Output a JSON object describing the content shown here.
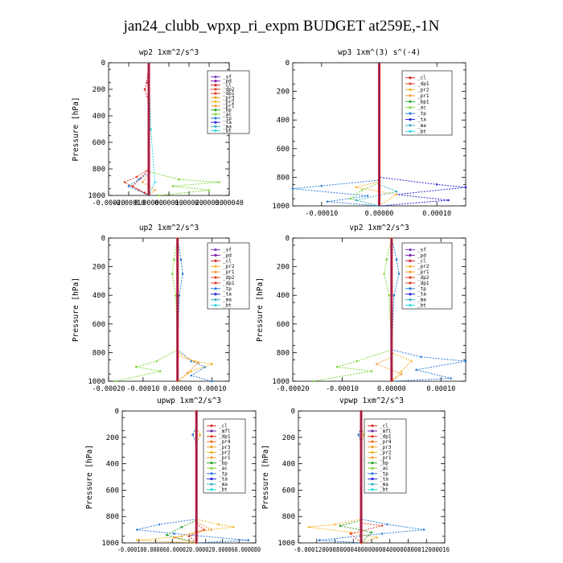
{
  "title": "jan24_clubb_wpxp_ri_expm  BUDGET at259E,-1N",
  "colors": {
    "sf": "#7e3fbf",
    "pd": "#7a1fa8",
    "cl": "#d02a2a",
    "dp2": "#e0442b",
    "dp1": "#e0442b",
    "pr2": "#f5b324",
    "pr1": "#f39c3a",
    "pr3": "#e8a321",
    "pr4": "#e8722a",
    "bp1": "#2fa32f",
    "bp": "#2fa32f",
    "ac": "#7fd83f",
    "tp": "#2f7fd8",
    "ta": "#2a2ad8",
    "ma": "#3fb4c8",
    "bt": "#2ad8e0",
    "mfl": "#6a1fa0",
    "center": "#c81e1e"
  },
  "chart_data": [
    {
      "type": "line",
      "title": "wp2  1xm^2/s^3",
      "ylabel": "Pressure  [hPa]",
      "ylim": [
        1000,
        0
      ],
      "xlim": [
        -0.0002,
        0.0004
      ],
      "xticks": [
        "-0.00020",
        "-0.00010",
        "0.00000",
        "0.00010",
        "0.00020",
        "0.00030",
        "0.00040"
      ],
      "yticks": [
        "0",
        "200",
        "400",
        "600",
        "800",
        "1000"
      ],
      "legend": [
        "_sf",
        "_pd",
        "_cl",
        "_dp2",
        "_dp1",
        "_pr3",
        "_pr2",
        "_pr1",
        "_bp",
        "_ac",
        "_tp",
        "_ta",
        "_ma",
        "_bt"
      ],
      "series": [
        {
          "name": "_cl",
          "color": "cl",
          "points": [
            [
              0,
              0
            ],
            [
              -1e-05,
              150
            ],
            [
              -2e-05,
              200
            ],
            [
              0,
              300
            ],
            [
              0,
              800
            ],
            [
              -4e-05,
              870
            ],
            [
              -8e-05,
              930
            ],
            [
              -2e-05,
              980
            ],
            [
              0,
              1000
            ]
          ]
        },
        {
          "name": "_dp1",
          "color": "dp1",
          "points": [
            [
              0,
              0
            ],
            [
              0,
              800
            ],
            [
              -6e-05,
              860
            ],
            [
              -0.00012,
              900
            ],
            [
              -5e-05,
              960
            ],
            [
              0,
              1000
            ]
          ]
        },
        {
          "name": "_ac",
          "color": "ac",
          "points": [
            [
              0,
              0
            ],
            [
              0,
              820
            ],
            [
              0.00015,
              880
            ],
            [
              0.00035,
              900
            ],
            [
              0.00012,
              930
            ],
            [
              0.0003,
              960
            ],
            [
              5e-05,
              1000
            ]
          ]
        },
        {
          "name": "_tp",
          "color": "tp",
          "points": [
            [
              0,
              0
            ],
            [
              0,
              830
            ],
            [
              -5e-05,
              880
            ],
            [
              -0.0001,
              930
            ],
            [
              0,
              1000
            ]
          ]
        },
        {
          "name": "_pr1",
          "color": "pr1",
          "points": [
            [
              0,
              0
            ],
            [
              0,
              840
            ],
            [
              -3e-05,
              900
            ],
            [
              3e-05,
              960
            ],
            [
              0,
              1000
            ]
          ]
        },
        {
          "name": "_bt",
          "color": "bt",
          "points": [
            [
              0,
              0
            ],
            [
              1e-05,
              500
            ],
            [
              3e-05,
              900
            ],
            [
              0,
              1000
            ]
          ]
        }
      ]
    },
    {
      "type": "line",
      "title": "wp3  1xm^(3) s^(-4)",
      "ylabel": "",
      "ylim": [
        1000,
        0
      ],
      "xlim": [
        -0.00015,
        0.00015
      ],
      "xticks": [
        "-0.00010",
        "0.00000",
        "0.00010"
      ],
      "yticks": [
        "0",
        "200",
        "400",
        "600",
        "800",
        "1000"
      ],
      "legend": [
        "_cl",
        "_dp1",
        "_pr2",
        "_pr1",
        "_bp1",
        "_ac",
        "_tp",
        "_ta",
        "_ma",
        "_bt"
      ],
      "series": [
        {
          "name": "_ta",
          "color": "ta",
          "points": [
            [
              0,
              0
            ],
            [
              0,
              800
            ],
            [
              0.0001,
              850
            ],
            [
              0.00015,
              870
            ],
            [
              3e-05,
              920
            ],
            [
              0.00012,
              960
            ],
            [
              0,
              1000
            ]
          ]
        },
        {
          "name": "_tp",
          "color": "tp",
          "points": [
            [
              0,
              0
            ],
            [
              0,
              820
            ],
            [
              -0.0001,
              860
            ],
            [
              -0.00015,
              880
            ],
            [
              -2e-05,
              930
            ],
            [
              -9e-05,
              970
            ],
            [
              0,
              1000
            ]
          ]
        },
        {
          "name": "_pr2",
          "color": "pr2",
          "points": [
            [
              0,
              0
            ],
            [
              0,
              830
            ],
            [
              -4e-05,
              870
            ],
            [
              3e-05,
              920
            ],
            [
              0,
              1000
            ]
          ]
        },
        {
          "name": "_ac",
          "color": "ac",
          "points": [
            [
              0,
              0
            ],
            [
              0,
              840
            ],
            [
              -3e-05,
              890
            ],
            [
              -5e-05,
              950
            ],
            [
              0,
              1000
            ]
          ]
        },
        {
          "name": "_ma",
          "color": "ma",
          "points": [
            [
              0,
              0
            ],
            [
              0,
              850
            ],
            [
              3e-05,
              900
            ],
            [
              -4e-05,
              960
            ],
            [
              0,
              1000
            ]
          ]
        }
      ]
    },
    {
      "type": "line",
      "title": "up2  1xm^2/s^3",
      "ylabel": "Pressure  [hPa]",
      "ylim": [
        1000,
        0
      ],
      "xlim": [
        -0.0002,
        0.00015
      ],
      "xticks": [
        "-0.00020",
        "-0.00010",
        "0.00000",
        "0.00010"
      ],
      "yticks": [
        "0",
        "200",
        "400",
        "600",
        "800",
        "1000"
      ],
      "legend": [
        "_sf",
        "_pd",
        "_cl",
        "_pr2",
        "_pr1",
        "_dp2",
        "_dp1",
        "_tp",
        "_ta",
        "_ma",
        "_bt"
      ],
      "series": [
        {
          "name": "_dp1",
          "color": "ac",
          "points": [
            [
              0,
              0
            ],
            [
              -1e-05,
              150
            ],
            [
              -1.5e-05,
              250
            ],
            [
              -5e-06,
              400
            ],
            [
              0,
              780
            ],
            [
              -6e-05,
              860
            ],
            [
              -0.00012,
              900
            ],
            [
              -5e-05,
              930
            ],
            [
              -0.00018,
              1000
            ]
          ]
        },
        {
          "name": "_tp",
          "color": "tp",
          "points": [
            [
              0,
              0
            ],
            [
              1e-05,
              150
            ],
            [
              1.5e-05,
              250
            ],
            [
              5e-06,
              400
            ],
            [
              0,
              780
            ],
            [
              4e-05,
              860
            ],
            [
              8e-05,
              900
            ],
            [
              4e-05,
              960
            ],
            [
              0.0001,
              1000
            ]
          ]
        },
        {
          "name": "_pr2",
          "color": "pr2",
          "points": [
            [
              0,
              0
            ],
            [
              0,
              800
            ],
            [
              5e-05,
              860
            ],
            [
              0.0001,
              880
            ],
            [
              4e-05,
              930
            ],
            [
              0,
              1000
            ]
          ]
        },
        {
          "name": "_pr1",
          "color": "pr1",
          "points": [
            [
              0,
              0
            ],
            [
              0,
              820
            ],
            [
              6e-05,
              870
            ],
            [
              3e-05,
              940
            ],
            [
              0,
              1000
            ]
          ]
        }
      ]
    },
    {
      "type": "line",
      "title": "vp2  1xm^2/s^3",
      "ylabel": "Pressure  [hPa]",
      "ylim": [
        1000,
        0
      ],
      "xlim": [
        -0.0002,
        0.00015
      ],
      "xticks": [
        "-0.00020",
        "-0.00010",
        "0.00000",
        "0.00010"
      ],
      "yticks": [
        "0",
        "200",
        "400",
        "600",
        "800",
        "1000"
      ],
      "legend": [
        "_sf",
        "_pd",
        "_cl",
        "_pr2",
        "_pr1",
        "_dp2",
        "_dp1",
        "_tp",
        "_ta",
        "_ma",
        "_bt"
      ],
      "series": [
        {
          "name": "_dp1",
          "color": "ac",
          "points": [
            [
              0,
              0
            ],
            [
              -1e-05,
              150
            ],
            [
              -1.5e-05,
              250
            ],
            [
              -5e-06,
              400
            ],
            [
              0,
              780
            ],
            [
              -7e-05,
              860
            ],
            [
              -0.00011,
              900
            ],
            [
              -4e-05,
              930
            ],
            [
              -0.00016,
              1000
            ]
          ]
        },
        {
          "name": "_tp",
          "color": "tp",
          "points": [
            [
              0,
              0
            ],
            [
              1e-05,
              150
            ],
            [
              1.5e-05,
              250
            ],
            [
              5e-06,
              400
            ],
            [
              0,
              780
            ],
            [
              6e-05,
              830
            ],
            [
              0.00015,
              860
            ],
            [
              5e-05,
              920
            ],
            [
              0.00012,
              980
            ],
            [
              0,
              1000
            ]
          ]
        },
        {
          "name": "_pr2",
          "color": "pr2",
          "points": [
            [
              0,
              0
            ],
            [
              0,
              800
            ],
            [
              4e-05,
              860
            ],
            [
              2e-05,
              930
            ],
            [
              0,
              1000
            ]
          ]
        },
        {
          "name": "_pr1",
          "color": "pr1",
          "points": [
            [
              0,
              0
            ],
            [
              0,
              830
            ],
            [
              -3e-05,
              880
            ],
            [
              2e-05,
              950
            ],
            [
              0,
              1000
            ]
          ]
        }
      ]
    },
    {
      "type": "line",
      "title": "upwp  1xm^2/s^3",
      "ylabel": "Pressure  [hPa]",
      "ylim": [
        1000,
        0
      ],
      "xlim": [
        -0.0001,
        8e-05
      ],
      "xticks": [
        "-0.000100.000060.000020.000020.000060.000080"
      ],
      "yticks": [
        "0",
        "200",
        "400",
        "600",
        "800",
        "1000"
      ],
      "legend": [
        "_cl",
        "_mfl",
        "_dp1",
        "_pr4",
        "_pr3",
        "_pr2",
        "_pr1",
        "_bp",
        "_ac",
        "_tp",
        "_ta",
        "_ma",
        "_bt"
      ],
      "series": [
        {
          "name": "_tp",
          "color": "tp",
          "points": [
            [
              0,
              0
            ],
            [
              0,
              120
            ],
            [
              -5e-06,
              180
            ],
            [
              0,
              250
            ],
            [
              0,
              820
            ],
            [
              -5e-05,
              860
            ],
            [
              -8e-05,
              900
            ],
            [
              -3e-05,
              930
            ],
            [
              7e-05,
              980
            ],
            [
              0,
              1000
            ]
          ]
        },
        {
          "name": "_pr2",
          "color": "pr2",
          "points": [
            [
              0,
              0
            ],
            [
              0,
              120
            ],
            [
              5e-06,
              180
            ],
            [
              0,
              250
            ],
            [
              0,
              820
            ],
            [
              3e-05,
              860
            ],
            [
              5e-05,
              880
            ],
            [
              0,
              910
            ],
            [
              -2e-05,
              950
            ],
            [
              -8e-05,
              980
            ],
            [
              0,
              1000
            ]
          ]
        },
        {
          "name": "_ac",
          "color": "bp",
          "points": [
            [
              0,
              0
            ],
            [
              0,
              830
            ],
            [
              -2e-05,
              880
            ],
            [
              -4e-05,
              940
            ],
            [
              0,
              1000
            ]
          ]
        },
        {
          "name": "_pr1",
          "color": "pr1",
          "points": [
            [
              0,
              0
            ],
            [
              0,
              840
            ],
            [
              2e-05,
              900
            ],
            [
              -3e-05,
              960
            ],
            [
              0,
              1000
            ]
          ]
        },
        {
          "name": "_dp1",
          "color": "dp1",
          "points": [
            [
              0,
              0
            ],
            [
              0,
              850
            ],
            [
              1e-05,
              900
            ],
            [
              -1e-05,
              950
            ],
            [
              0,
              1000
            ]
          ]
        }
      ]
    },
    {
      "type": "line",
      "title": "vpwp  1xm^2/s^3",
      "ylabel": "Pressure  [hPa]",
      "ylim": [
        1000,
        0
      ],
      "xlim": [
        -0.00012,
        0.00016
      ],
      "xticks": [
        "-0.00012000080000400000000400000800012000016"
      ],
      "yticks": [
        "0",
        "200",
        "400",
        "600",
        "800",
        "1000"
      ],
      "legend": [
        "_cl",
        "_mfl",
        "_dp1",
        "_pr4",
        "_pr3",
        "_pr2",
        "_pr1",
        "_bp",
        "_ac",
        "_tp",
        "_ta",
        "_ma",
        "_bt"
      ],
      "series": [
        {
          "name": "_tp",
          "color": "tp",
          "points": [
            [
              0,
              0
            ],
            [
              0,
              120
            ],
            [
              -5e-06,
              180
            ],
            [
              0,
              250
            ],
            [
              0,
              820
            ],
            [
              5e-05,
              860
            ],
            [
              0.00012,
              900
            ],
            [
              4e-05,
              930
            ],
            [
              -8e-05,
              980
            ],
            [
              0,
              1000
            ]
          ]
        },
        {
          "name": "_pr2",
          "color": "pr2",
          "points": [
            [
              0,
              0
            ],
            [
              0,
              120
            ],
            [
              5e-06,
              180
            ],
            [
              0,
              250
            ],
            [
              0,
              820
            ],
            [
              -5e-05,
              860
            ],
            [
              -0.0001,
              880
            ],
            [
              -2e-05,
              920
            ],
            [
              3e-05,
              960
            ],
            [
              0,
              1000
            ]
          ]
        },
        {
          "name": "_ac",
          "color": "bp",
          "points": [
            [
              0,
              0
            ],
            [
              0,
              830
            ],
            [
              -4e-05,
              870
            ],
            [
              2e-05,
              920
            ],
            [
              0,
              1000
            ]
          ]
        },
        {
          "name": "_dp1",
          "color": "dp1",
          "points": [
            [
              0,
              0
            ],
            [
              0,
              850
            ],
            [
              4e-05,
              870
            ],
            [
              -2e-05,
              930
            ],
            [
              0,
              1000
            ]
          ]
        }
      ]
    }
  ]
}
